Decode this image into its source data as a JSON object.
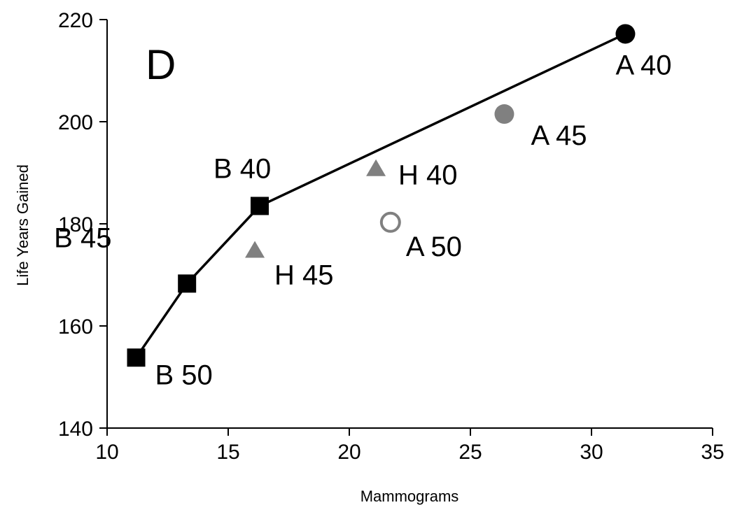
{
  "chart_data": {
    "type": "scatter",
    "panel_label": "D",
    "xlabel": "Mammograms",
    "ylabel": "Life Years Gained",
    "xlim": [
      10,
      35
    ],
    "ylim": [
      140,
      220
    ],
    "xticks": [
      "10",
      "15",
      "20",
      "25",
      "30",
      "35"
    ],
    "yticks": [
      "140",
      "160",
      "180",
      "200",
      "220"
    ],
    "grid": false,
    "legend": "none",
    "frontier": {
      "line_color": "#000000",
      "points": [
        "B 50",
        "B 45",
        "B 40",
        "A 40"
      ]
    },
    "points": [
      {
        "label": "B 50",
        "x": 11.2,
        "y": 153.8,
        "marker": "square",
        "color": "#000000",
        "filled": true
      },
      {
        "label": "B 45",
        "x": 13.3,
        "y": 168.3,
        "marker": "square",
        "color": "#000000",
        "filled": true
      },
      {
        "label": "B 40",
        "x": 16.3,
        "y": 183.5,
        "marker": "square",
        "color": "#000000",
        "filled": true
      },
      {
        "label": "A 40",
        "x": 31.4,
        "y": 217.2,
        "marker": "circle",
        "color": "#000000",
        "filled": true
      },
      {
        "label": "H 45",
        "x": 16.1,
        "y": 175.0,
        "marker": "triangle",
        "color": "#808080",
        "filled": true
      },
      {
        "label": "H 40",
        "x": 21.1,
        "y": 191.0,
        "marker": "triangle",
        "color": "#808080",
        "filled": true
      },
      {
        "label": "A 45",
        "x": 26.4,
        "y": 201.5,
        "marker": "circle",
        "color": "#808080",
        "filled": true
      },
      {
        "label": "A 50",
        "x": 21.7,
        "y": 180.3,
        "marker": "circle",
        "color": "#808080",
        "filled": false
      }
    ]
  }
}
